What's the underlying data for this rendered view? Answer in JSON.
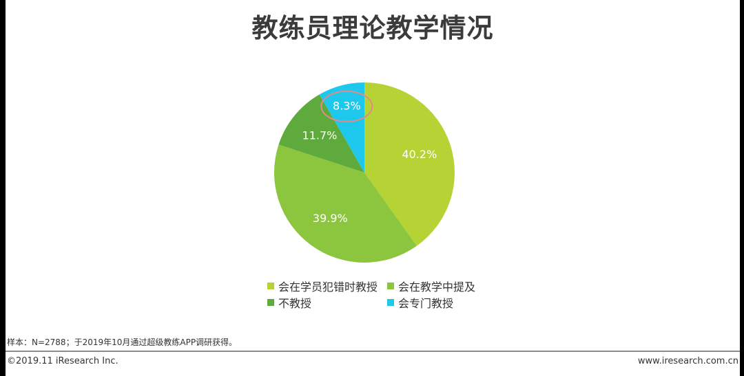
{
  "title": "教练员理论教学情况",
  "chart_data": {
    "type": "pie",
    "title": "教练员理论教学情况",
    "slices": [
      {
        "label": "会在学员犯错时教授",
        "value": 40.2,
        "display": "40.2%",
        "color": "#b5d334"
      },
      {
        "label": "会在教学中提及",
        "value": 39.9,
        "display": "39.9%",
        "color": "#8cc63f"
      },
      {
        "label": "不教授",
        "value": 11.7,
        "display": "11.7%",
        "color": "#5faa3c"
      },
      {
        "label": "会专门教授",
        "value": 8.3,
        "display": "8.3%",
        "color": "#1ec8ec"
      }
    ],
    "start_angle_deg": 0,
    "direction": "clockwise",
    "highlighted_slice": "会专门教授",
    "highlight_color": "#e28a8a",
    "legend_position": "bottom"
  },
  "footer": {
    "source": "样本：N=2788；于2019年10月通过超级教练APP调研获得。",
    "copyright": "©2019.11 iResearch Inc.",
    "website": "www.iresearch.com.cn"
  }
}
